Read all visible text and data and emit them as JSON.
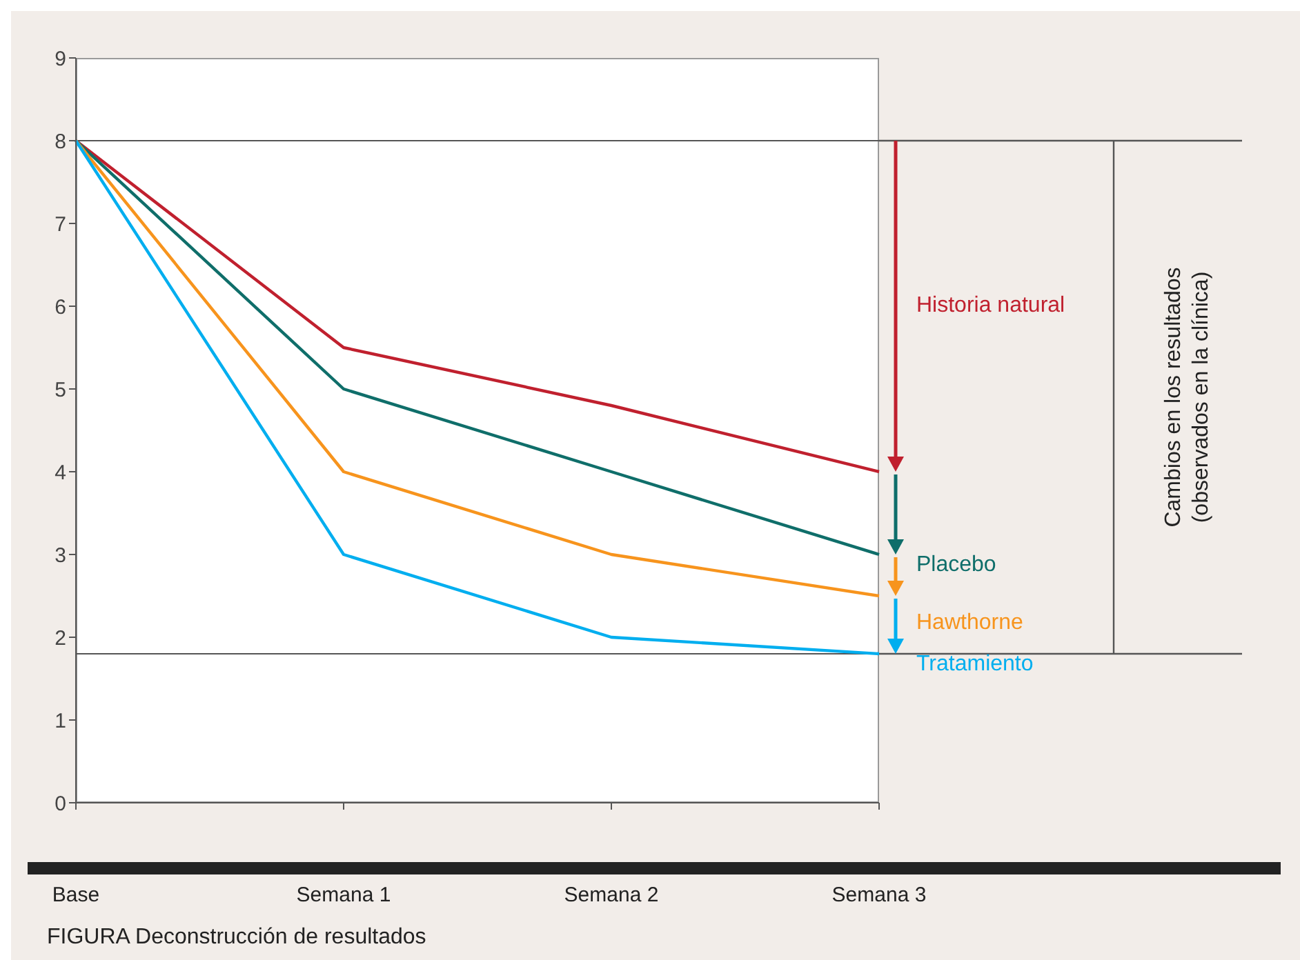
{
  "chart_data": {
    "type": "line",
    "categories": [
      "Base",
      "Semana 1",
      "Semana 2",
      "Semana 3"
    ],
    "series": [
      {
        "name": "Historia natural",
        "color": "#c0202e",
        "values": [
          8,
          5.5,
          4.8,
          4
        ]
      },
      {
        "name": "Placebo",
        "color": "#0f6e6a",
        "values": [
          8,
          5,
          4,
          3
        ]
      },
      {
        "name": "Hawthorne",
        "color": "#f7941d",
        "values": [
          8,
          4,
          3,
          2.5
        ]
      },
      {
        "name": "Tratamiento",
        "color": "#00aeef",
        "values": [
          8,
          3,
          2,
          1.8
        ]
      }
    ],
    "ylim": [
      0,
      9
    ],
    "yticks": [
      0,
      1,
      2,
      3,
      4,
      5,
      6,
      7,
      8,
      9
    ],
    "legend": "right",
    "marker": "none",
    "line_style": "solid",
    "ref_lines": [
      {
        "axis": "y",
        "value": 8,
        "color": "#555555"
      },
      {
        "axis": "y",
        "value": 1.8,
        "color": "#555555"
      }
    ],
    "annotations": [
      "Cambios en los resultados (observados en la clínica)",
      "FIGURA Deconstrucción de resultados"
    ]
  }
}
